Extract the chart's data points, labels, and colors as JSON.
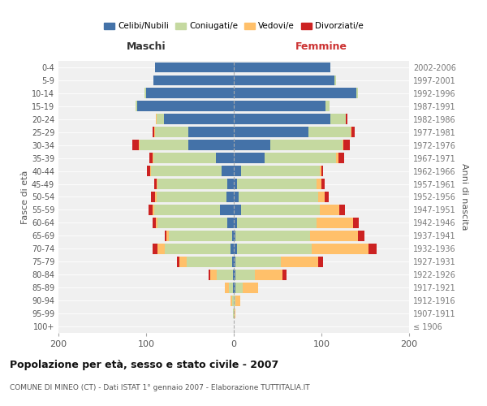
{
  "age_groups": [
    "100+",
    "95-99",
    "90-94",
    "85-89",
    "80-84",
    "75-79",
    "70-74",
    "65-69",
    "60-64",
    "55-59",
    "50-54",
    "45-49",
    "40-44",
    "35-39",
    "30-34",
    "25-29",
    "20-24",
    "15-19",
    "10-14",
    "5-9",
    "0-4"
  ],
  "birth_years": [
    "≤ 1906",
    "1907-1911",
    "1912-1916",
    "1917-1921",
    "1922-1926",
    "1927-1931",
    "1932-1936",
    "1937-1941",
    "1942-1946",
    "1947-1951",
    "1952-1956",
    "1957-1961",
    "1962-1966",
    "1967-1971",
    "1972-1976",
    "1977-1981",
    "1982-1986",
    "1987-1991",
    "1992-1996",
    "1997-2001",
    "2002-2006"
  ],
  "maschi": {
    "celibi": [
      0,
      0,
      0,
      1,
      1,
      2,
      4,
      2,
      7,
      16,
      8,
      7,
      14,
      20,
      52,
      52,
      80,
      110,
      100,
      92,
      90
    ],
    "coniugati": [
      0,
      1,
      2,
      5,
      18,
      52,
      75,
      72,
      80,
      75,
      80,
      80,
      80,
      72,
      55,
      38,
      8,
      2,
      2,
      0,
      0
    ],
    "vedovi": [
      0,
      0,
      2,
      4,
      8,
      8,
      8,
      3,
      2,
      2,
      2,
      1,
      1,
      1,
      1,
      1,
      1,
      0,
      0,
      0,
      0
    ],
    "divorziati": [
      0,
      0,
      0,
      0,
      2,
      3,
      6,
      2,
      4,
      4,
      4,
      3,
      4,
      3,
      8,
      2,
      0,
      0,
      0,
      0,
      0
    ]
  },
  "femmine": {
    "nubili": [
      0,
      0,
      0,
      2,
      2,
      2,
      4,
      2,
      4,
      8,
      6,
      4,
      8,
      35,
      42,
      85,
      110,
      105,
      140,
      115,
      110
    ],
    "coniugate": [
      0,
      1,
      2,
      8,
      22,
      52,
      85,
      85,
      90,
      90,
      90,
      90,
      90,
      82,
      82,
      48,
      18,
      4,
      2,
      2,
      0
    ],
    "vedove": [
      0,
      1,
      5,
      18,
      32,
      42,
      65,
      55,
      42,
      22,
      8,
      6,
      2,
      2,
      1,
      1,
      0,
      0,
      0,
      0,
      0
    ],
    "divorziate": [
      0,
      0,
      0,
      0,
      4,
      6,
      9,
      7,
      7,
      7,
      4,
      4,
      2,
      7,
      7,
      4,
      2,
      0,
      0,
      0,
      0
    ]
  },
  "colors": {
    "celibi": "#4472a8",
    "coniugati": "#c5d9a0",
    "vedovi": "#ffc06a",
    "divorziati": "#cc2222"
  },
  "xlim": 200,
  "title": "Popolazione per età, sesso e stato civile - 2007",
  "subtitle": "COMUNE DI MINEO (CT) - Dati ISTAT 1° gennaio 2007 - Elaborazione TUTTITALIA.IT",
  "ylabel_left": "Fasce di età",
  "ylabel_right": "Anni di nascita",
  "xlabel_left": "Maschi",
  "xlabel_right": "Femmine",
  "bg_color": "#ffffff",
  "plot_bg": "#f0f0f0"
}
